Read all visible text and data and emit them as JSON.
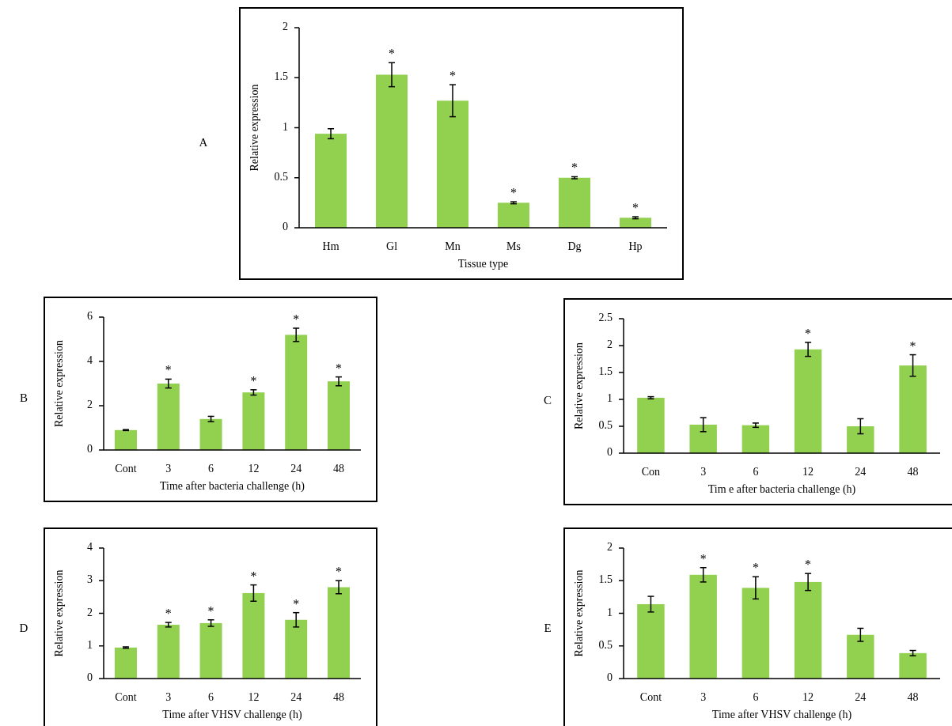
{
  "chart_data": [
    {
      "type": "bar",
      "title": "A",
      "xlabel": "Tissue type",
      "ylabel": "Relative expression",
      "categories": [
        "Hm",
        "Gl",
        "Mn",
        "Ms",
        "Dg",
        "Hp"
      ],
      "values": [
        0.94,
        1.53,
        1.27,
        0.25,
        0.5,
        0.1
      ],
      "errors": [
        0.05,
        0.12,
        0.16,
        0.01,
        0.01,
        0.01
      ],
      "color": "#92d050",
      "ylim": [
        0,
        2
      ],
      "yticks": [
        0,
        0.5,
        1,
        1.5,
        2
      ],
      "annotations": [
        {
          "text": "*",
          "x": "Gl",
          "y": 1.65
        },
        {
          "text": "*",
          "x": "Mn",
          "y": 1.43
        },
        {
          "text": "*",
          "x": "Ms",
          "y": 0.26
        },
        {
          "text": "*",
          "x": "Dg",
          "y": 0.51
        },
        {
          "text": "*",
          "x": "Hp",
          "y": 0.11
        }
      ]
    },
    {
      "type": "bar",
      "title": "B",
      "xlabel": "Time after bacteria challenge  (h)",
      "ylabel": "Relative expression",
      "categories": [
        "Cont",
        "3",
        "6",
        "12",
        "24",
        "48"
      ],
      "values": [
        0.9,
        3.0,
        1.4,
        2.6,
        5.2,
        3.1
      ],
      "errors": [
        0.02,
        0.2,
        0.12,
        0.12,
        0.3,
        0.2
      ],
      "color": "#92d050",
      "ylim": [
        0,
        6
      ],
      "yticks": [
        0,
        2,
        4,
        6
      ],
      "annotations": [
        {
          "text": "*",
          "x": "3",
          "y": 3.2
        },
        {
          "text": "*",
          "x": "12",
          "y": 2.72
        },
        {
          "text": "*",
          "x": "24",
          "y": 5.5
        },
        {
          "text": "*",
          "x": "48",
          "y": 3.3
        }
      ]
    },
    {
      "type": "bar",
      "title": "C",
      "xlabel": "Tim e after bacteria challenge (h)",
      "ylabel": "Relative expression",
      "categories": [
        "Con",
        "3",
        "6",
        "12",
        "24",
        "48"
      ],
      "values": [
        1.03,
        0.53,
        0.52,
        1.93,
        0.5,
        1.63
      ],
      "errors": [
        0.02,
        0.13,
        0.04,
        0.13,
        0.14,
        0.2
      ],
      "color": "#92d050",
      "ylim": [
        0,
        2.5
      ],
      "yticks": [
        0,
        0.5,
        1,
        1.5,
        2,
        2.5
      ],
      "annotations": [
        {
          "text": "*",
          "x": "12",
          "y": 2.06
        },
        {
          "text": "*",
          "x": "48",
          "y": 1.83
        }
      ]
    },
    {
      "type": "bar",
      "title": "D",
      "xlabel": "Time after VHSV challenge  (h)",
      "ylabel": "Relative expression",
      "categories": [
        "Cont",
        "3",
        "6",
        "12",
        "24",
        "48"
      ],
      "values": [
        0.95,
        1.65,
        1.7,
        2.62,
        1.8,
        2.8
      ],
      "errors": [
        0.02,
        0.07,
        0.1,
        0.25,
        0.22,
        0.2
      ],
      "color": "#92d050",
      "ylim": [
        0,
        4
      ],
      "yticks": [
        0,
        1,
        2,
        3,
        4
      ],
      "annotations": [
        {
          "text": "*",
          "x": "3",
          "y": 1.72
        },
        {
          "text": "*",
          "x": "6",
          "y": 1.8
        },
        {
          "text": "*",
          "x": "12",
          "y": 2.87
        },
        {
          "text": "*",
          "x": "24",
          "y": 2.02
        },
        {
          "text": "*",
          "x": "48",
          "y": 3.0
        }
      ]
    },
    {
      "type": "bar",
      "title": "E",
      "xlabel": "Time after VHSV challenge (h)",
      "ylabel": "Relative expression",
      "categories": [
        "Cont",
        "3",
        "6",
        "12",
        "24",
        "48"
      ],
      "values": [
        1.14,
        1.59,
        1.39,
        1.48,
        0.67,
        0.39
      ],
      "errors": [
        0.12,
        0.11,
        0.17,
        0.13,
        0.1,
        0.04
      ],
      "color": "#92d050",
      "ylim": [
        0,
        2
      ],
      "yticks": [
        0,
        0.5,
        1,
        1.5,
        2
      ],
      "annotations": [
        {
          "text": "*",
          "x": "3",
          "y": 1.7
        },
        {
          "text": "*",
          "x": "6",
          "y": 1.56
        },
        {
          "text": "*",
          "x": "12",
          "y": 1.61
        }
      ]
    }
  ]
}
